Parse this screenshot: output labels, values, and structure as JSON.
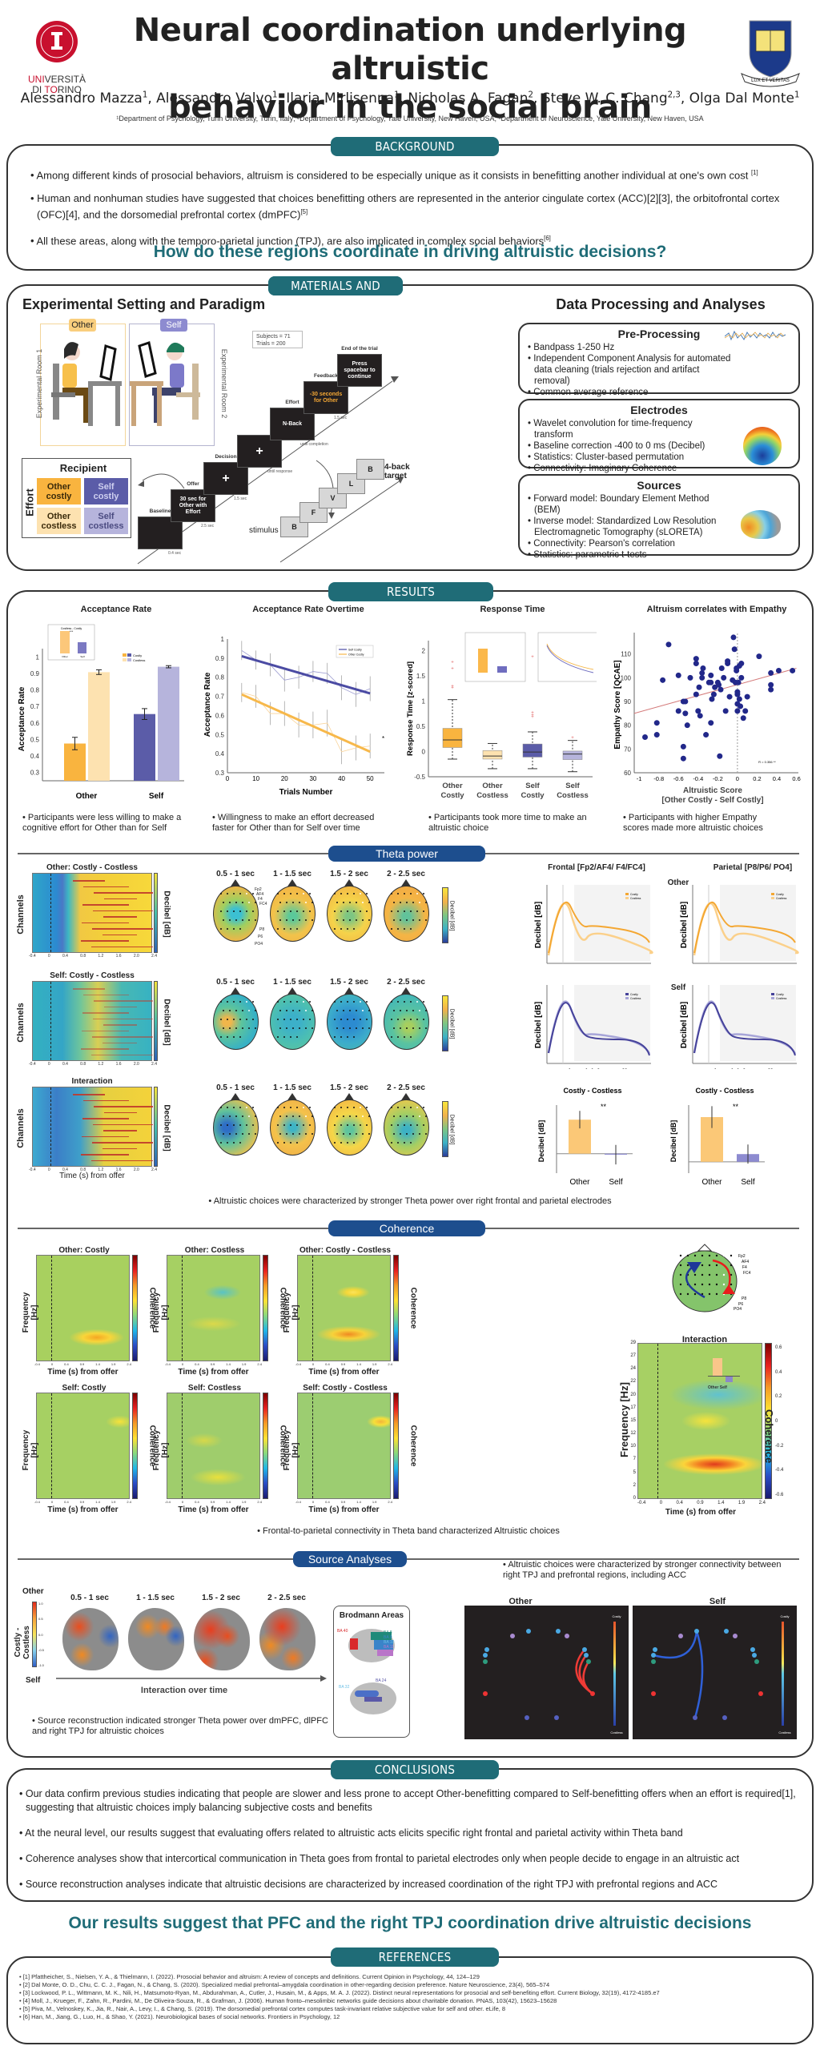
{
  "header": {
    "title_line1": "Neural coordination underlying altruistic",
    "title_line2": "behavior in the social brain",
    "authors": [
      {
        "name": "Alessandro Mazza",
        "aff": "1"
      },
      {
        "name": "Alessandro Valvo",
        "aff": "1"
      },
      {
        "name": "Ilaria Mirlisenna",
        "aff": "1"
      },
      {
        "name": "Nicholas A. Fagan",
        "aff": "2"
      },
      {
        "name": "Steve W. C. Chang",
        "aff": "2,3"
      },
      {
        "name": "Olga Dal Monte",
        "aff": "1"
      }
    ],
    "affiliations": "¹Department of Psychology, Turin University, Turin, Italy; ²Department of Psychology, Yale University, New Haven, USA; ³Department of Neuroscience, Yale University, New Haven, USA",
    "logo_left": {
      "line1a": "UNI",
      "line1b": "VERSITÀ",
      "line2a": "DI ",
      "line2b": "TO",
      "line2c": "RINO"
    },
    "logo_right": {
      "motto": "LUX ET VERITAS",
      "book": "אורים ותמים"
    }
  },
  "background": {
    "heading": "BACKGROUND",
    "bullets": [
      {
        "text": "Among different kinds of prosocial behaviors, altruism is considered to be especially unique as it consists in benefitting another individual at one's own cost ",
        "ref": "[1]"
      },
      {
        "text": "Human and nonhuman studies have suggested that choices benefitting others are represented in the anterior cingulate cortex (ACC)[2][3], the orbitofrontal cortex (OFC)[4], and the dorsomedial prefrontal cortex (dmPFC)",
        "ref": "[5]"
      },
      {
        "text": "All these areas, along with the temporo-parietal junction (TPJ), are also implicated in complex social behaviors",
        "ref": "[6]"
      }
    ],
    "question": "How do these regions coordinate in driving altruistic decisions?"
  },
  "methods": {
    "heading": "MATERIALS AND METHODS",
    "left_title": "Experimental Setting and Paradigm",
    "room1": "Experimental Room 1",
    "room2": "Experimental Room 2",
    "other_tag": "Other",
    "self_tag": "Self",
    "stats": [
      "Subjects = 71",
      "Trials = 200"
    ],
    "matrix": {
      "col_header": "Recipient",
      "row_header": "Effort",
      "cells": [
        "Other costly",
        "Self costly",
        "Other costless",
        "Self costless"
      ],
      "colors": [
        "#f9b43f",
        "#5b5ca8",
        "#fde2b0",
        "#b6b4dc"
      ]
    },
    "trial": [
      {
        "label": "Baseline",
        "screen": "",
        "time": "0.4 sec"
      },
      {
        "label": "Offer",
        "screen": "30 sec for Other with Effort",
        "time": "2.5 sec"
      },
      {
        "label": "Decision",
        "screen": "+",
        "time": "1.5 sec"
      },
      {
        "label": "",
        "screen": "+",
        "time": "until response"
      },
      {
        "label": "Effort",
        "screen": "N-Back",
        "time": "until completion"
      },
      {
        "label": "Feedback",
        "screen": "-30 seconds for Other",
        "time": "1.5 sec"
      },
      {
        "label": "End of the trial",
        "screen": "Press spacebar to continue",
        "time": ""
      }
    ],
    "nback": {
      "letters": [
        "B",
        "F",
        "V",
        "L",
        "B"
      ],
      "stimulus": "stimulus",
      "target": "4-back target"
    },
    "right_title": "Data Processing and Analyses",
    "boxes": [
      {
        "title": "Pre-Processing",
        "items": [
          "Bandpass 1-250 Hz",
          "Independent Component Analysis for automated data cleaning (trials rejection and artifact removal)",
          "Common average reference"
        ]
      },
      {
        "title": "Electrodes",
        "items": [
          "Wavelet convolution for time-frequency transform",
          "Baseline correction -400 to 0 ms (Decibel)",
          "Statistics: Cluster-based permutation",
          "Connectivity: Imaginary Coherence"
        ]
      },
      {
        "title": "Sources",
        "items": [
          "Forward model: Boundary Element Method (BEM)",
          "Inverse model: Standardized Low Resolution Electromagnetic Tomography (sLORETA)",
          "Connectivity: Pearson's correlation",
          "Statistics: parametric t-tests"
        ]
      }
    ]
  },
  "results": {
    "heading": "RESULTS",
    "captions": [
      "Participants were less willing to make a cognitive effort for Other than for Self",
      "Willingness to make an effort decreased faster for Other than for Self over time",
      "Participants took more time to make an altruistic choice",
      "Participants with higher Empathy scores made more altruistic choices"
    ],
    "theta": {
      "heading": "Theta power",
      "rows": [
        "Other: Costly - Costless",
        "Self: Costly - Costless",
        "Interaction"
      ],
      "windows": [
        "0.5 - 1 sec",
        "1 - 1.5 sec",
        "1.5 - 2 sec",
        "2 - 2.5 sec"
      ],
      "channels_label": "Channels",
      "decibel_label": "Decibel [dB]",
      "time_label": "Time (s) from offer",
      "x_ticks": [
        "-0.4",
        "0",
        "0.4",
        "0.8",
        "1.2",
        "1.6",
        "2.0",
        "2.4"
      ],
      "electrodes": [
        "Fp2",
        "AF4",
        "F4",
        "FC4",
        "P8",
        "P6",
        "PO4"
      ],
      "frontal_title": "Frontal [Fp2/AF4/ F4/FC4]",
      "parietal_title": "Parietal [P8/P6/ PO4]",
      "other_label": "Other",
      "self_label": "Self",
      "caption": "Altruistic choices were characterized by stronger Theta power over right frontal and parietal electrodes"
    },
    "coherence": {
      "heading": "Coherence",
      "panels": [
        "Other: Costly",
        "Other: Costless",
        "Other: Costly - Costless",
        "Self: Costly",
        "Self: Costless",
        "Self: Costly - Costless"
      ],
      "interaction_title": "Interaction",
      "freq_label": "Frequency [Hz]",
      "coh_label": "Coherence",
      "time_label": "Time (s) from offer",
      "x_ticks": [
        "-0.4",
        "0",
        "0.4",
        "0.9",
        "1.4",
        "1.9",
        "2.4"
      ],
      "y_ticks": [
        "0",
        "2",
        "5",
        "7",
        "10",
        "12",
        "15",
        "17",
        "20",
        "22",
        "24",
        "27",
        "29"
      ],
      "cbar_ticks": [
        "0.6",
        "0.4",
        "0.2",
        "0",
        "-0.2",
        "-0.4",
        "-0.6"
      ],
      "inset_labels": [
        "Other",
        "Self"
      ],
      "caption": "Frontal-to-parietal connectivity in Theta band characterized Altruistic choices"
    },
    "sources": {
      "heading": "Source Analyses",
      "windows": [
        "0.5 - 1 sec",
        "1 - 1.5 sec",
        "1.5 - 2 sec",
        "2 - 2.5 sec"
      ],
      "axis_top": "Other",
      "axis_bottom": "Self",
      "axis_label": "Costly - Costless",
      "cbar_ticks": [
        "1.0",
        "0.5",
        "0.0",
        "-0.5",
        "-1.0"
      ],
      "over_time": "Interaction over time",
      "brodmann_title": "Brodmann Areas",
      "brodmann_lateral": [
        "BA 40",
        "BA 8",
        "BA 9",
        "BA 10",
        "BA 11"
      ],
      "brodmann_medial": [
        "BA 24",
        "BA 32"
      ],
      "caption_left": "Source reconstruction indicated stronger Theta power over dmPFC, dlPFC and right TPJ for altruistic choices",
      "caption_right": "Altruistic choices were characterized by stronger connectivity between right TPJ and prefrontal regions, including ACC",
      "conn_titles": [
        "Other",
        "Self"
      ],
      "conn_cbar": [
        "Costly",
        "Costless"
      ]
    }
  },
  "conclusions": {
    "heading": "CONCLUSIONS",
    "bullets": [
      "Our data confirm previous studies indicating that people are slower and less prone to accept Other-benefitting compared to Self-benefitting offers when an effort is required[1], suggesting that altruistic choices imply balancing subjective costs and benefits",
      "At the neural level, our results suggest that evaluating offers related to altruistic acts elicits specific right frontal and parietal activity within Theta band",
      "Coherence analyses show that intercortical communication in Theta goes from frontal to parietal electrodes only when people decide to engage in an altruistic act",
      "Source reconstruction analyses indicate that altruistic decisions are characterized by increased coordination of the right TPJ with prefrontal regions and ACC"
    ],
    "takeaway": "Our results suggest that PFC and the right TPJ coordination drive altruistic decisions"
  },
  "references": {
    "heading": "REFERENCES",
    "items": [
      "[1] Pfattheicher, S., Nielsen, Y. A., & Thielmann, I. (2022). Prosocial behavior and altruism: A review of concepts and definitions. Current Opinion in Psychology, 44, 124–129",
      "[2] Dal Monte, O. D., Chu, C. C. J., Fagan, N., & Chang, S. (2020). Specialized medial prefrontal–amygdala coordination in other-regarding decision preference. Nature Neuroscience, 23(4), 565–574",
      "[3] Lockwood, P. L., Wittmann, M. K., Nili, H., Matsumoto-Ryan, M., Abdurahman, A., Cutler, J., Husain, M., & Apps, M. A. J. (2022). Distinct neural representations for prosocial and self-benefiting effort. Current Biology, 32(19), 4172-4185.e7",
      "[4] Moll, J., Krueger, F., Zahn, R., Pardini, M., De Oliveira-Souza, R., & Grafman, J. (2006). Human fronto–mesolimbic networks guide decisions about charitable donation. PNAS, 103(42), 15623–15628",
      "[5] Piva, M., Velnoskey, K., Jia, R., Nair, A., Levy, I., & Chang, S. (2019). The dorsomedial prefrontal cortex computes task-invariant relative subjective value for self and other. eLife, 8",
      "[6] Han, M., Jiang, G., Luo, H., & Shao, Y. (2021). Neurobiological bases of social networks. Frontiers in Psychology, 12"
    ]
  },
  "chart_data": [
    {
      "id": "acceptance_rate",
      "type": "bar",
      "title": "Acceptance Rate",
      "xlabel": "",
      "ylabel": "Acceptance Rate",
      "categories": [
        "Other",
        "Self"
      ],
      "series": [
        {
          "name": "Costly",
          "values": [
            0.49,
            0.68
          ],
          "errors": [
            0.04,
            0.035
          ],
          "colors": [
            "#f9b43f",
            "#5b5ca8"
          ]
        },
        {
          "name": "Costless",
          "values": [
            0.95,
            0.985
          ],
          "errors": [
            0.015,
            0.007
          ],
          "colors": [
            "#fde2b0",
            "#b6b4dc"
          ]
        }
      ],
      "yticks": [
        0.3,
        0.4,
        0.5,
        0.6,
        0.7,
        0.8,
        0.9,
        1
      ],
      "ylim": [
        0.25,
        1.05
      ],
      "legend": "top-right",
      "inset": {
        "title": "Costless - Costly",
        "categories": [
          "Other",
          "Self"
        ],
        "values": [
          0.46,
          0.3
        ],
        "sig": "***"
      }
    },
    {
      "id": "acceptance_overtime",
      "type": "line",
      "title": "Acceptance Rate Overtime",
      "xlabel": "Trials Number",
      "ylabel": "Acceptance Rate",
      "x": [
        5,
        10,
        15,
        20,
        25,
        30,
        35,
        40,
        45,
        50
      ],
      "series": [
        {
          "name": "Self Costly",
          "color": "#4b4ba3",
          "values": [
            0.94,
            0.89,
            0.865,
            0.785,
            0.8,
            0.83,
            0.82,
            0.745,
            0.71,
            0.74
          ],
          "errors": [
            0.05,
            0.05,
            0.06,
            0.06,
            0.06,
            0.055,
            0.055,
            0.065,
            0.065,
            0.065
          ],
          "fit": [
            0.91,
            0.715
          ]
        },
        {
          "name": "Other Costly",
          "color": "#f7b84a",
          "values": [
            0.72,
            0.7,
            0.61,
            0.61,
            0.55,
            0.55,
            0.56,
            0.41,
            0.43,
            0.44
          ],
          "errors": [
            0.05,
            0.06,
            0.06,
            0.065,
            0.065,
            0.07,
            0.07,
            0.065,
            0.065,
            0.065
          ],
          "fit": [
            0.71,
            0.41
          ]
        }
      ],
      "xlim": [
        0,
        55
      ],
      "ylim": [
        0.3,
        1
      ],
      "xticks": [
        0,
        10,
        20,
        30,
        40,
        50
      ],
      "yticks": [
        0.3,
        0.4,
        0.5,
        0.6,
        0.7,
        0.8,
        0.9,
        1
      ],
      "annotation": "*",
      "legend": "top-right"
    },
    {
      "id": "response_time",
      "type": "box",
      "title": "Response Time",
      "ylabel": "Response Time [z-scored]",
      "categories": [
        "Other Costly",
        "Other Costless",
        "Self Costly",
        "Self Costless"
      ],
      "boxes": [
        {
          "q1": 0.08,
          "median": 0.23,
          "q3": 0.46,
          "whisker_low": -0.15,
          "whisker_high": 1.03,
          "outliers": [
            1.78,
            1.65,
            1.3,
            1.27
          ],
          "color": "#f9b43f"
        },
        {
          "q1": -0.15,
          "median": -0.09,
          "q3": 0.02,
          "whisker_low": -0.34,
          "whisker_high": 0.16,
          "outliers": [],
          "color": "#fde2b0"
        },
        {
          "q1": -0.11,
          "median": -0.01,
          "q3": 0.15,
          "whisker_low": -0.34,
          "whisker_high": 0.39,
          "outliers": [
            0.78,
            0.73,
            0.69
          ],
          "color": "#5b5ca8"
        },
        {
          "q1": -0.16,
          "median": -0.05,
          "q3": 0.01,
          "whisker_low": -0.4,
          "whisker_high": 0.22,
          "outliers": [
            0.28
          ],
          "color": "#b6b4dc"
        }
      ],
      "ylim": [
        -0.5,
        2.2
      ],
      "yticks": [
        -0.5,
        0,
        0.5,
        1,
        1.5,
        2
      ]
    },
    {
      "id": "empathy_scatter",
      "type": "scatter",
      "title": "Altruism correlates with Empathy",
      "xlabel": "Altruistic Score [Other Costly - Self Costly]",
      "ylabel": "Empathy Score [QCAE]",
      "xlim": [
        -1.05,
        0.62
      ],
      "ylim": [
        60,
        119
      ],
      "xticks": [
        -1,
        -0.8,
        -0.6,
        -0.4,
        -0.2,
        0,
        0.2,
        0.4,
        0.6
      ],
      "yticks": [
        60,
        70,
        80,
        90,
        100,
        110
      ],
      "points": [
        [
          -0.94,
          75
        ],
        [
          -0.82,
          81
        ],
        [
          -0.82,
          76
        ],
        [
          -0.76,
          99
        ],
        [
          -0.7,
          114
        ],
        [
          -0.6,
          101
        ],
        [
          -0.6,
          86
        ],
        [
          -0.55,
          90
        ],
        [
          -0.53,
          90
        ],
        [
          -0.55,
          71
        ],
        [
          -0.55,
          66
        ],
        [
          -0.53,
          85
        ],
        [
          -0.51,
          80
        ],
        [
          -0.48,
          100
        ],
        [
          -0.42,
          108
        ],
        [
          -0.42,
          106
        ],
        [
          -0.42,
          93
        ],
        [
          -0.4,
          86
        ],
        [
          -0.39,
          96
        ],
        [
          -0.38,
          84
        ],
        [
          -0.36,
          102
        ],
        [
          -0.36,
          100
        ],
        [
          -0.35,
          104
        ],
        [
          -0.32,
          76
        ],
        [
          -0.29,
          98
        ],
        [
          -0.27,
          101
        ],
        [
          -0.27,
          98
        ],
        [
          -0.27,
          81
        ],
        [
          -0.26,
          91
        ],
        [
          -0.24,
          93
        ],
        [
          -0.23,
          96
        ],
        [
          -0.2,
          98
        ],
        [
          -0.19,
          97
        ],
        [
          -0.18,
          67
        ],
        [
          -0.17,
          95
        ],
        [
          -0.16,
          104
        ],
        [
          -0.14,
          100
        ],
        [
          -0.12,
          86
        ],
        [
          -0.1,
          106
        ],
        [
          -0.1,
          107
        ],
        [
          -0.08,
          92
        ],
        [
          -0.05,
          99
        ],
        [
          -0.04,
          117
        ],
        [
          -0.03,
          112
        ],
        [
          -0.02,
          98
        ],
        [
          -0.01,
          104
        ],
        [
          -0.01,
          103
        ],
        [
          0,
          94
        ],
        [
          0,
          93
        ],
        [
          0,
          89
        ],
        [
          0,
          86
        ],
        [
          0.01,
          98
        ],
        [
          0.02,
          105
        ],
        [
          0.02,
          91
        ],
        [
          0.03,
          88
        ],
        [
          0.04,
          100
        ],
        [
          0.04,
          106
        ],
        [
          0.06,
          83
        ],
        [
          0.08,
          86
        ],
        [
          0.1,
          92
        ],
        [
          0.22,
          109
        ],
        [
          0.34,
          102
        ],
        [
          0.34,
          97
        ],
        [
          0.34,
          95
        ],
        [
          0.42,
          103
        ],
        [
          0.56,
          103
        ]
      ],
      "fit": {
        "x": [
          -1.05,
          0.6
        ],
        "y": [
          85,
          104
        ]
      },
      "annotation": "R = 0.356 **"
    },
    {
      "id": "theta_bars_frontal",
      "type": "bar",
      "title": "Costly - Costless",
      "ylabel": "Decibel [dB]",
      "categories": [
        "Other",
        "Self"
      ],
      "values": [
        1.75,
        -0.05
      ],
      "errors": [
        0.45,
        0.5
      ],
      "ylim": [
        -1,
        2.5
      ],
      "yticks": [
        -1,
        -0.5,
        0,
        0.5,
        1,
        1.5,
        2,
        2.5
      ],
      "annotation": "**"
    },
    {
      "id": "theta_bars_parietal",
      "type": "bar",
      "title": "Costly - Costless",
      "ylabel": "Decibel [dB]",
      "categories": [
        "Other",
        "Self"
      ],
      "values": [
        1.97,
        0.34
      ],
      "errors": [
        0.48,
        0.42
      ],
      "ylim": [
        -0.5,
        2.5
      ],
      "yticks": [
        -0.5,
        0,
        0.5,
        1,
        1.5,
        2,
        2.5
      ],
      "annotation": "**"
    }
  ]
}
